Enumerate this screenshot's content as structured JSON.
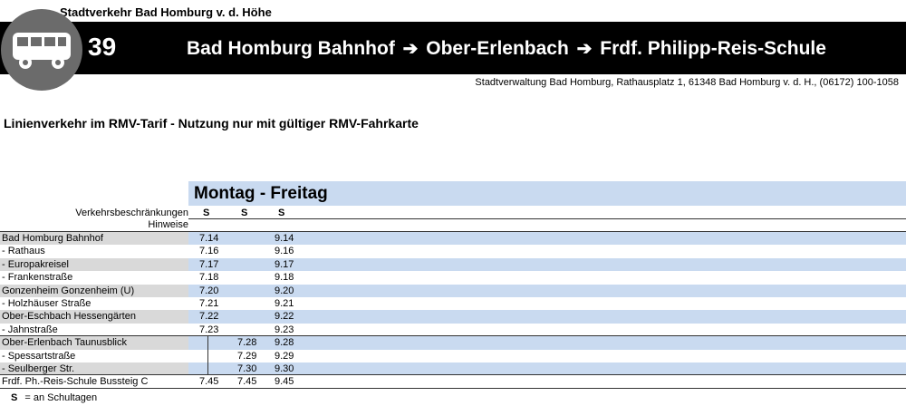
{
  "operator": "Stadtverkehr Bad Homburg v. d. Höhe",
  "line_number": "39",
  "route": {
    "from": "Bad Homburg Bahnhof",
    "via": "Ober-Erlenbach",
    "to": "Frdf. Philipp-Reis-Schule"
  },
  "admin_contact": "Stadtverwaltung Bad Homburg, Rathausplatz 1, 61348 Bad Homburg v. d. H., (06172) 100-1058",
  "tariff_note": "Linienverkehr im RMV-Tarif - Nutzung nur mit gültiger RMV-Fahrkarte",
  "day_type": "Montag - Freitag",
  "restrictions_label": "Verkehrsbeschränkungen",
  "notes_label": "Hinweise",
  "restrictions": [
    "S",
    "S",
    "S"
  ],
  "stops": [
    {
      "name": "Bad Homburg Bahnhof",
      "times": [
        "7.14",
        "",
        "9.14"
      ]
    },
    {
      "name": "- Rathaus",
      "times": [
        "7.16",
        "",
        "9.16"
      ]
    },
    {
      "name": "- Europakreisel",
      "times": [
        "7.17",
        "",
        "9.17"
      ]
    },
    {
      "name": "- Frankenstraße",
      "times": [
        "7.18",
        "",
        "9.18"
      ]
    },
    {
      "name": "Gonzenheim Gonzenheim (U)",
      "times": [
        "7.20",
        "",
        "9.20"
      ]
    },
    {
      "name": "- Holzhäuser Straße",
      "times": [
        "7.21",
        "",
        "9.21"
      ]
    },
    {
      "name": "Ober-Eschbach Hessengärten",
      "times": [
        "7.22",
        "",
        "9.22"
      ]
    },
    {
      "name": "- Jahnstraße",
      "times": [
        "7.23",
        "",
        "9.23"
      ]
    },
    {
      "name": "Ober-Erlenbach Taunusblick",
      "times": [
        "",
        "7.28",
        "9.28"
      ]
    },
    {
      "name": "- Spessartstraße",
      "times": [
        "",
        "7.29",
        "9.29"
      ]
    },
    {
      "name": "- Seulberger Str.",
      "times": [
        "",
        "7.30",
        "9.30"
      ]
    },
    {
      "name": "Frdf. Ph.-Reis-Schule Bussteig C",
      "times": [
        "7.45",
        "7.45",
        "9.45"
      ]
    }
  ],
  "legend": {
    "symbol": "S",
    "text": "= an Schultagen"
  }
}
